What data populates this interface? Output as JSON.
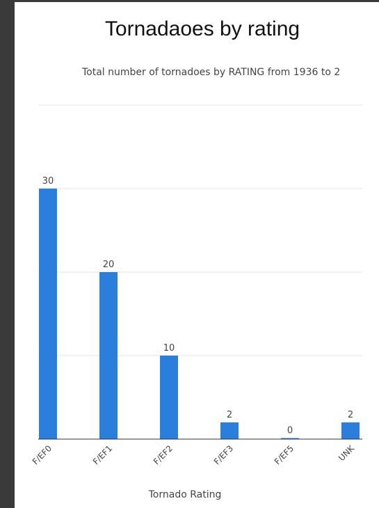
{
  "chart_data": {
    "type": "bar",
    "title": "Tornadaoes by rating",
    "subtitle": "Total number of tornadoes by RATING from 1936 to 2",
    "xlabel": "Tornado Rating",
    "ylabel": "",
    "categories": [
      "F/EF0",
      "F/EF1",
      "F/EF2",
      "F/EF3",
      "F/EF5",
      "UNK"
    ],
    "values": [
      30,
      20,
      10,
      2,
      0,
      2
    ],
    "data_labels": [
      "30",
      "20",
      "10",
      "2",
      "0",
      "2"
    ],
    "ylim": [
      0,
      40
    ],
    "yticks": [
      0,
      10,
      20,
      30,
      40
    ],
    "grid": true,
    "legend": "none",
    "bar_color": "#2b7fdc"
  }
}
